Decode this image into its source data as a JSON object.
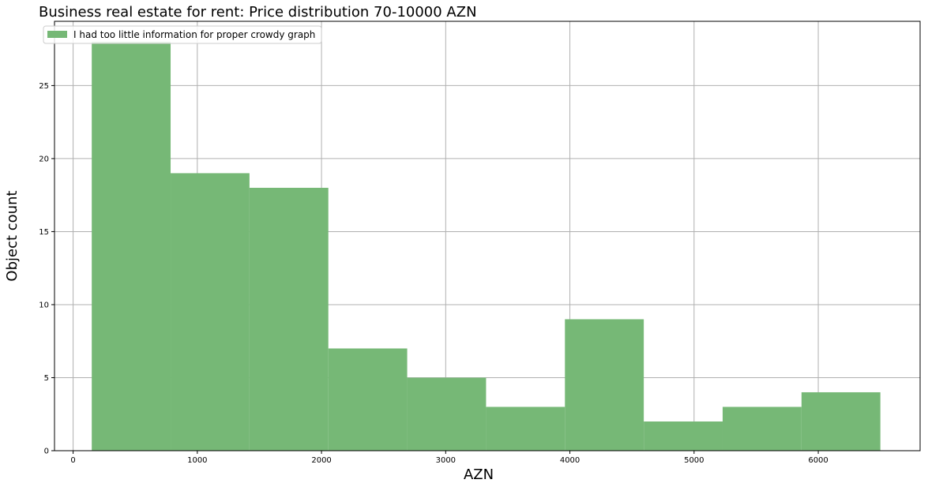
{
  "chart_data": {
    "type": "bar",
    "title": "Business real estate for rent: Price distribution 70-10000 AZN",
    "xlabel": "AZN",
    "ylabel": "Object count",
    "bin_edges": [
      150,
      785,
      1420,
      2055,
      2690,
      3325,
      3960,
      4595,
      5230,
      5865,
      6500
    ],
    "values": [
      28,
      19,
      18,
      7,
      5,
      3,
      9,
      2,
      3,
      4
    ],
    "xlim": [
      -150,
      6820
    ],
    "ylim": [
      0,
      29.4
    ],
    "x_ticks": [
      0,
      1000,
      2000,
      3000,
      4000,
      5000,
      6000
    ],
    "y_ticks": [
      0,
      5,
      10,
      15,
      20,
      25
    ],
    "grid": true,
    "legend": {
      "position": "top-left",
      "entries": [
        {
          "label": "I had too little information for proper crowdy graph",
          "color": "#76b876"
        }
      ]
    },
    "bar_color": "#76b876",
    "grid_color": "#b0b0b0"
  }
}
